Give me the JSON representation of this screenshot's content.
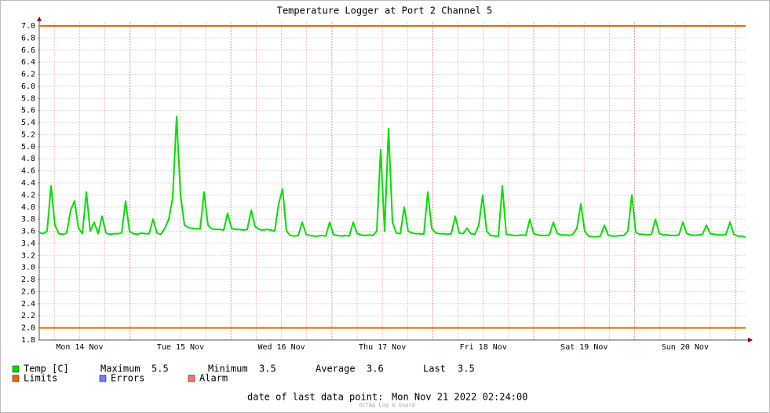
{
  "chart_data": {
    "type": "line",
    "title": "Temperature Logger at Port 2 Channel 5",
    "x_labels": [
      "Mon 14 Nov",
      "Tue 15 Nov",
      "Wed 16 Nov",
      "Thu 17 Nov",
      "Fri 18 Nov",
      "Sat 19 Nov",
      "Sun 20 Nov"
    ],
    "ylim": [
      1.8,
      7.0
    ],
    "yticks": [
      1.8,
      {
        "value": 2,
        "label": "2.0"
      },
      2.2,
      2.4,
      2.6,
      2.8,
      {
        "value": 3,
        "label": "3.0"
      },
      3.2,
      3.4,
      3.6,
      3.8,
      {
        "value": 4,
        "label": "4.0"
      },
      4.2,
      4.4,
      4.6,
      4.8,
      {
        "value": 5,
        "label": "5.0"
      },
      5.2,
      5.4,
      5.6,
      5.8,
      {
        "value": 6,
        "label": "6.0"
      },
      6.2,
      6.4,
      6.6,
      6.8,
      {
        "value": 7,
        "label": "7.0"
      }
    ],
    "grid": true,
    "series": [
      {
        "name": "Temp [C]",
        "color": "#00e000",
        "values": [
          3.58,
          3.56,
          3.6,
          4.35,
          3.7,
          3.56,
          3.55,
          3.57,
          3.95,
          4.1,
          3.65,
          3.56,
          4.25,
          3.6,
          3.75,
          3.56,
          3.85,
          3.57,
          3.55,
          3.56,
          3.56,
          3.57,
          4.1,
          3.6,
          3.56,
          3.55,
          3.57,
          3.56,
          3.56,
          3.8,
          3.57,
          3.55,
          3.65,
          3.8,
          4.15,
          5.5,
          4.2,
          3.7,
          3.66,
          3.65,
          3.64,
          3.64,
          4.25,
          3.7,
          3.64,
          3.63,
          3.63,
          3.62,
          3.9,
          3.65,
          3.63,
          3.63,
          3.62,
          3.63,
          3.95,
          3.68,
          3.63,
          3.62,
          3.63,
          3.62,
          3.6,
          4.05,
          4.3,
          3.6,
          3.53,
          3.52,
          3.53,
          3.75,
          3.55,
          3.53,
          3.52,
          3.52,
          3.53,
          3.52,
          3.75,
          3.54,
          3.53,
          3.52,
          3.53,
          3.52,
          3.75,
          3.56,
          3.54,
          3.53,
          3.54,
          3.53,
          3.6,
          4.95,
          3.6,
          5.3,
          3.75,
          3.57,
          3.56,
          4.0,
          3.6,
          3.57,
          3.56,
          3.56,
          3.55,
          4.25,
          3.65,
          3.57,
          3.56,
          3.56,
          3.55,
          3.56,
          3.85,
          3.57,
          3.56,
          3.65,
          3.56,
          3.55,
          3.7,
          4.2,
          3.6,
          3.53,
          3.52,
          3.52,
          4.35,
          3.55,
          3.54,
          3.53,
          3.53,
          3.54,
          3.53,
          3.8,
          3.56,
          3.54,
          3.53,
          3.53,
          3.54,
          3.75,
          3.56,
          3.54,
          3.54,
          3.53,
          3.55,
          3.65,
          4.05,
          3.6,
          3.52,
          3.51,
          3.51,
          3.52,
          3.7,
          3.53,
          3.52,
          3.52,
          3.53,
          3.53,
          3.6,
          4.2,
          3.58,
          3.55,
          3.55,
          3.54,
          3.55,
          3.8,
          3.56,
          3.54,
          3.54,
          3.53,
          3.53,
          3.54,
          3.75,
          3.56,
          3.54,
          3.53,
          3.54,
          3.55,
          3.7,
          3.56,
          3.55,
          3.54,
          3.54,
          3.55,
          3.75,
          3.55,
          3.52,
          3.52,
          3.5
        ]
      }
    ],
    "limits": {
      "name": "Limits",
      "color": "#e86a00",
      "values": [
        2,
        7
      ]
    },
    "errors": {
      "name": "Errors",
      "color": "#7080ff"
    },
    "alarm": {
      "name": "Alarm",
      "color": "#ff7070"
    },
    "stats": [
      {
        "label": "Maximum",
        "value": 5.5
      },
      {
        "label": "Minimum",
        "value": 3.5
      },
      {
        "label": "Average",
        "value": 3.6
      },
      {
        "label": "Last",
        "value": 3.5
      }
    ],
    "footer": {
      "label": "date of last data point:",
      "value": "Mon Nov 21 2022 02:24:00"
    },
    "watermark": "OCTA& Log & Guard"
  }
}
